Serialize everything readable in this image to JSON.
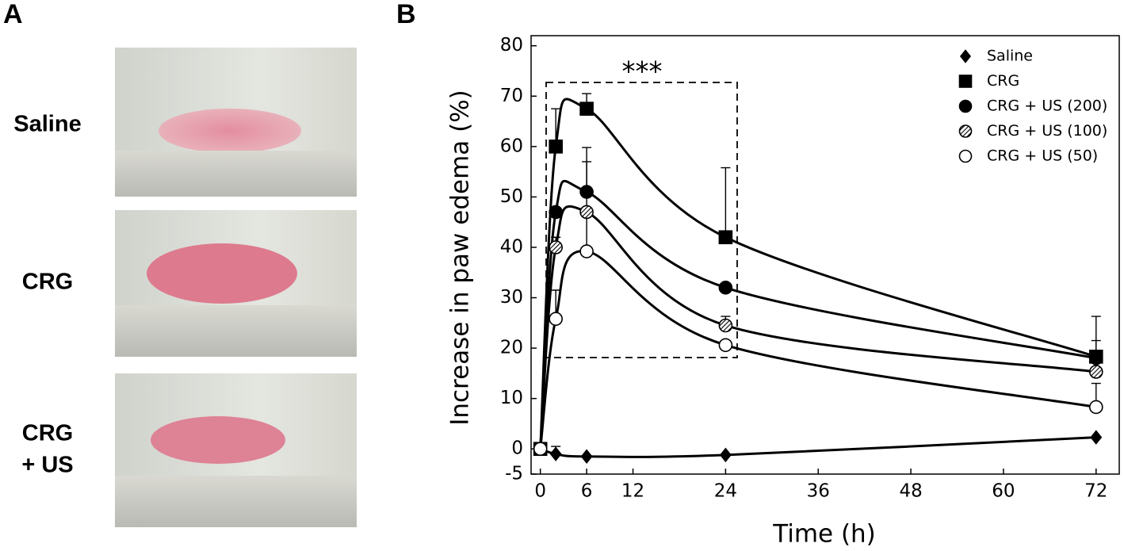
{
  "panel_a": {
    "label": "A",
    "labels": [
      [
        "Saline"
      ],
      [
        "CRG"
      ],
      [
        "CRG",
        "+ US"
      ]
    ]
  },
  "panel_b": {
    "label": "B"
  },
  "chart_data": {
    "type": "line",
    "x_label": "Time (h)",
    "y_label": "Increase in paw edema (%)",
    "annotation": "***",
    "x": [
      0,
      2,
      6,
      24,
      72
    ],
    "xlim": [
      -1.2,
      75
    ],
    "xticks": [
      0,
      6,
      12,
      24,
      36,
      48,
      60,
      72
    ],
    "ylim": [
      -5,
      82
    ],
    "yticks": [
      -5,
      0,
      10,
      20,
      30,
      40,
      50,
      60,
      70,
      80
    ],
    "legend": "upper right",
    "series": [
      {
        "name": "Saline",
        "color": "#000000",
        "marker": "diamond",
        "marker_fill": "solid",
        "values": [
          0,
          -1,
          -1.5,
          -1.2,
          2.3
        ],
        "errors": [
          null,
          1.5,
          null,
          null,
          null
        ]
      },
      {
        "name": "CRG",
        "color": "#000000",
        "marker": "square",
        "marker_fill": "solid",
        "values": [
          0,
          60,
          67.5,
          42,
          18.3
        ],
        "errors": [
          null,
          7.5,
          3,
          13.8,
          8
        ]
      },
      {
        "name": "CRG + US (200)",
        "color": "#000000",
        "marker": "circle",
        "marker_fill": "solid",
        "values": [
          0,
          47,
          51,
          32,
          18
        ],
        "errors": [
          null,
          null,
          8.8,
          null,
          3.5
        ]
      },
      {
        "name": "CRG + US (100)",
        "color": "#000000",
        "marker": "circle",
        "marker_fill": "hatch",
        "values": [
          0,
          40,
          47,
          24.5,
          15.3
        ],
        "errors": [
          null,
          2,
          10,
          1.8,
          null
        ]
      },
      {
        "name": "CRG + US (50)",
        "color": "#000000",
        "marker": "circle",
        "marker_fill": "open",
        "values": [
          0,
          25.8,
          39.2,
          20.6,
          8.3
        ],
        "errors": [
          null,
          5.7,
          7.8,
          null,
          4.7
        ]
      }
    ]
  }
}
